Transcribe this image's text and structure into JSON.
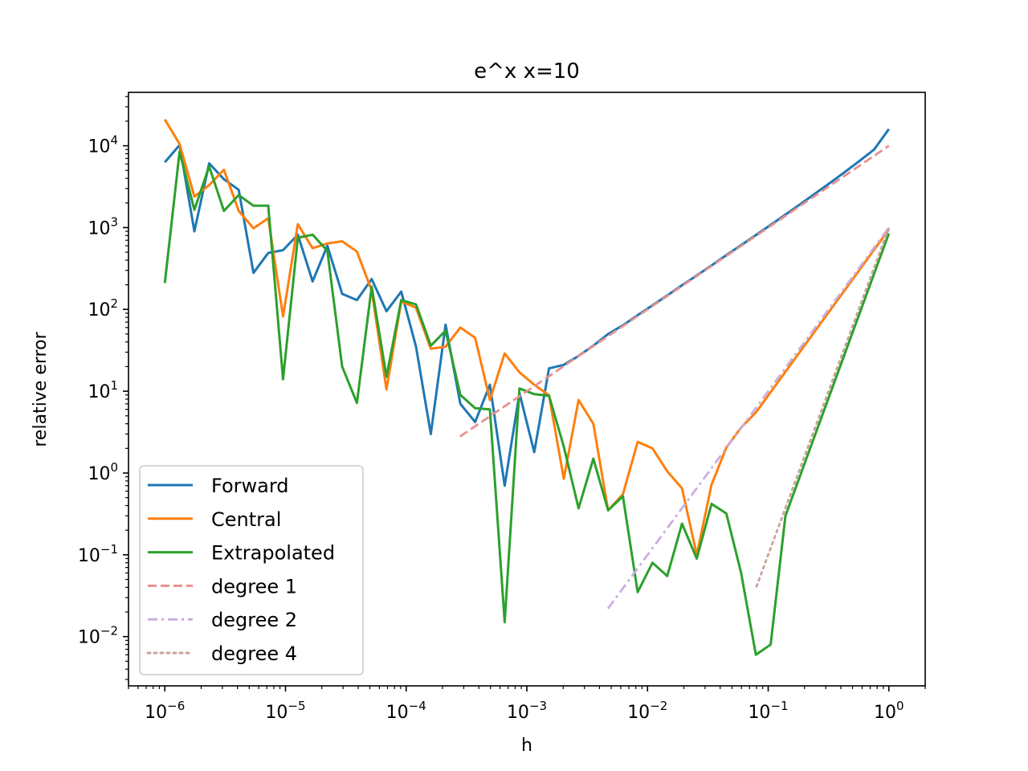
{
  "chart_data": {
    "type": "line",
    "title": "e^x x=10",
    "xlabel": "h",
    "ylabel": "relative error",
    "xscale": "log",
    "yscale": "log",
    "xlim": [
      5e-07,
      2.0
    ],
    "ylim": [
      0.0025,
      45000
    ],
    "grid": false,
    "legend_position": "lower-left",
    "x_ticks": [
      {
        "value": 1e-06,
        "base": "10",
        "exp": "−6"
      },
      {
        "value": 1e-05,
        "base": "10",
        "exp": "−5"
      },
      {
        "value": 0.0001,
        "base": "10",
        "exp": "−4"
      },
      {
        "value": 0.001,
        "base": "10",
        "exp": "−3"
      },
      {
        "value": 0.01,
        "base": "10",
        "exp": "−2"
      },
      {
        "value": 0.1,
        "base": "10",
        "exp": "−1"
      },
      {
        "value": 1,
        "base": "10",
        "exp": "0"
      }
    ],
    "y_ticks": [
      {
        "value": 0.01,
        "base": "10",
        "exp": "−2"
      },
      {
        "value": 0.1,
        "base": "10",
        "exp": "−1"
      },
      {
        "value": 1,
        "base": "10",
        "exp": "0"
      },
      {
        "value": 10,
        "base": "10",
        "exp": "1"
      },
      {
        "value": 100,
        "base": "10",
        "exp": "2"
      },
      {
        "value": 1000,
        "base": "10",
        "exp": "3"
      },
      {
        "value": 10000,
        "base": "10",
        "exp": "4"
      }
    ],
    "series": [
      {
        "name": "Forward",
        "color": "#1f77b4",
        "dash": "solid",
        "x": [
          1e-06,
          1.3257e-06,
          1.7575e-06,
          2.33e-06,
          3.0888e-06,
          4.0949e-06,
          5.4287e-06,
          7.1969e-06,
          9.541e-06,
          1.2649e-05,
          1.6768e-05,
          2.223e-05,
          2.9471e-05,
          3.9069e-05,
          5.1795e-05,
          6.8665e-05,
          9.103e-05,
          0.00012068,
          0.00015999,
          0.0002121,
          0.00028118,
          0.00037276,
          0.00049417,
          0.00065513,
          0.00086851,
          0.0011514,
          0.0015264,
          0.0020236,
          0.0026827,
          0.0035565,
          0.0047149,
          0.0062506,
          0.0082864,
          0.010985,
          0.014563,
          0.019307,
          0.025595,
          0.033932,
          0.044984,
          0.059636,
          0.07906,
          0.10481,
          0.13895,
          0.18421,
          0.24421,
          0.32375,
          0.42919,
          0.56899,
          0.75431,
          1.0
        ],
        "y": [
          6300,
          10200,
          900,
          6100,
          3900,
          2900,
          280,
          490,
          530,
          820,
          220,
          600,
          155,
          130,
          235,
          95,
          165,
          35,
          3.0,
          65,
          7.0,
          4.2,
          12,
          0.7,
          9.5,
          1.8,
          19,
          21,
          27,
          36,
          50,
          64,
          85,
          112,
          148,
          197,
          260,
          345,
          460,
          610,
          810,
          1080,
          1440,
          1930,
          2600,
          3500,
          4750,
          6500,
          9000,
          16000
        ]
      },
      {
        "name": "Central",
        "color": "#ff7f0e",
        "dash": "solid",
        "x": [
          1e-06,
          1.3257e-06,
          1.7575e-06,
          2.33e-06,
          3.0888e-06,
          4.0949e-06,
          5.4287e-06,
          7.1969e-06,
          9.541e-06,
          1.2649e-05,
          1.6768e-05,
          2.223e-05,
          2.9471e-05,
          3.9069e-05,
          5.1795e-05,
          6.8665e-05,
          9.103e-05,
          0.00012068,
          0.00015999,
          0.0002121,
          0.00028118,
          0.00037276,
          0.00049417,
          0.00065513,
          0.00086851,
          0.0011514,
          0.0015264,
          0.0020236,
          0.0026827,
          0.0035565,
          0.0047149,
          0.0062506,
          0.0082864,
          0.010985,
          0.014563,
          0.019307,
          0.025595,
          0.033932,
          0.044984,
          0.059636,
          0.07906,
          1.0
        ],
        "y": [
          21000,
          10500,
          2400,
          3300,
          5100,
          1600,
          980,
          1300,
          82,
          1100,
          560,
          640,
          680,
          510,
          170,
          10.5,
          125,
          105,
          33,
          35,
          60,
          45,
          7.8,
          29,
          17,
          12,
          8.9,
          0.85,
          7.8,
          4.0,
          0.35,
          0.55,
          2.4,
          2.0,
          1.05,
          0.65,
          0.1,
          0.72,
          2.05,
          3.6,
          5.5,
          950
        ]
      },
      {
        "name": "Extrapolated",
        "color": "#2ca02c",
        "dash": "solid",
        "x": [
          1e-06,
          1.3257e-06,
          1.7575e-06,
          2.33e-06,
          3.0888e-06,
          4.0949e-06,
          5.4287e-06,
          7.1969e-06,
          9.541e-06,
          1.2649e-05,
          1.6768e-05,
          2.223e-05,
          2.9471e-05,
          3.9069e-05,
          5.1795e-05,
          6.8665e-05,
          9.103e-05,
          0.00012068,
          0.00015999,
          0.0002121,
          0.00028118,
          0.00037276,
          0.00049417,
          0.00065513,
          0.00086851,
          0.0011514,
          0.0015264,
          0.0020236,
          0.0026827,
          0.0035565,
          0.0047149,
          0.0062506,
          0.0082864,
          0.010985,
          0.014563,
          0.019307,
          0.025595,
          0.033932,
          0.044984,
          0.059636,
          0.07906,
          0.10481,
          0.13895,
          1.0
        ],
        "y": [
          210,
          8500,
          1650,
          5600,
          1600,
          2500,
          1850,
          1850,
          14,
          750,
          820,
          520,
          20,
          7.2,
          190,
          15,
          130,
          115,
          36,
          55,
          9.0,
          6.2,
          6.0,
          0.015,
          10.8,
          9.2,
          8.8,
          2.1,
          0.37,
          1.5,
          0.35,
          0.52,
          0.035,
          0.08,
          0.055,
          0.24,
          0.09,
          0.42,
          0.32,
          0.06,
          0.006,
          0.008,
          0.3,
          850
        ]
      },
      {
        "name": "degree 1",
        "color": "#e8908f",
        "dash": "dashed",
        "x": [
          0.00028,
          1.0
        ],
        "y": [
          2.8,
          10000
        ]
      },
      {
        "name": "degree 2",
        "color": "#c9aee0",
        "dash": "dashdot",
        "x": [
          0.0047,
          1.0
        ],
        "y": [
          0.022,
          1000
        ]
      },
      {
        "name": "degree 4",
        "color": "#c8a59e",
        "dash": "dotted",
        "x": [
          0.08,
          1.0
        ],
        "y": [
          0.041,
          1000
        ]
      }
    ]
  }
}
